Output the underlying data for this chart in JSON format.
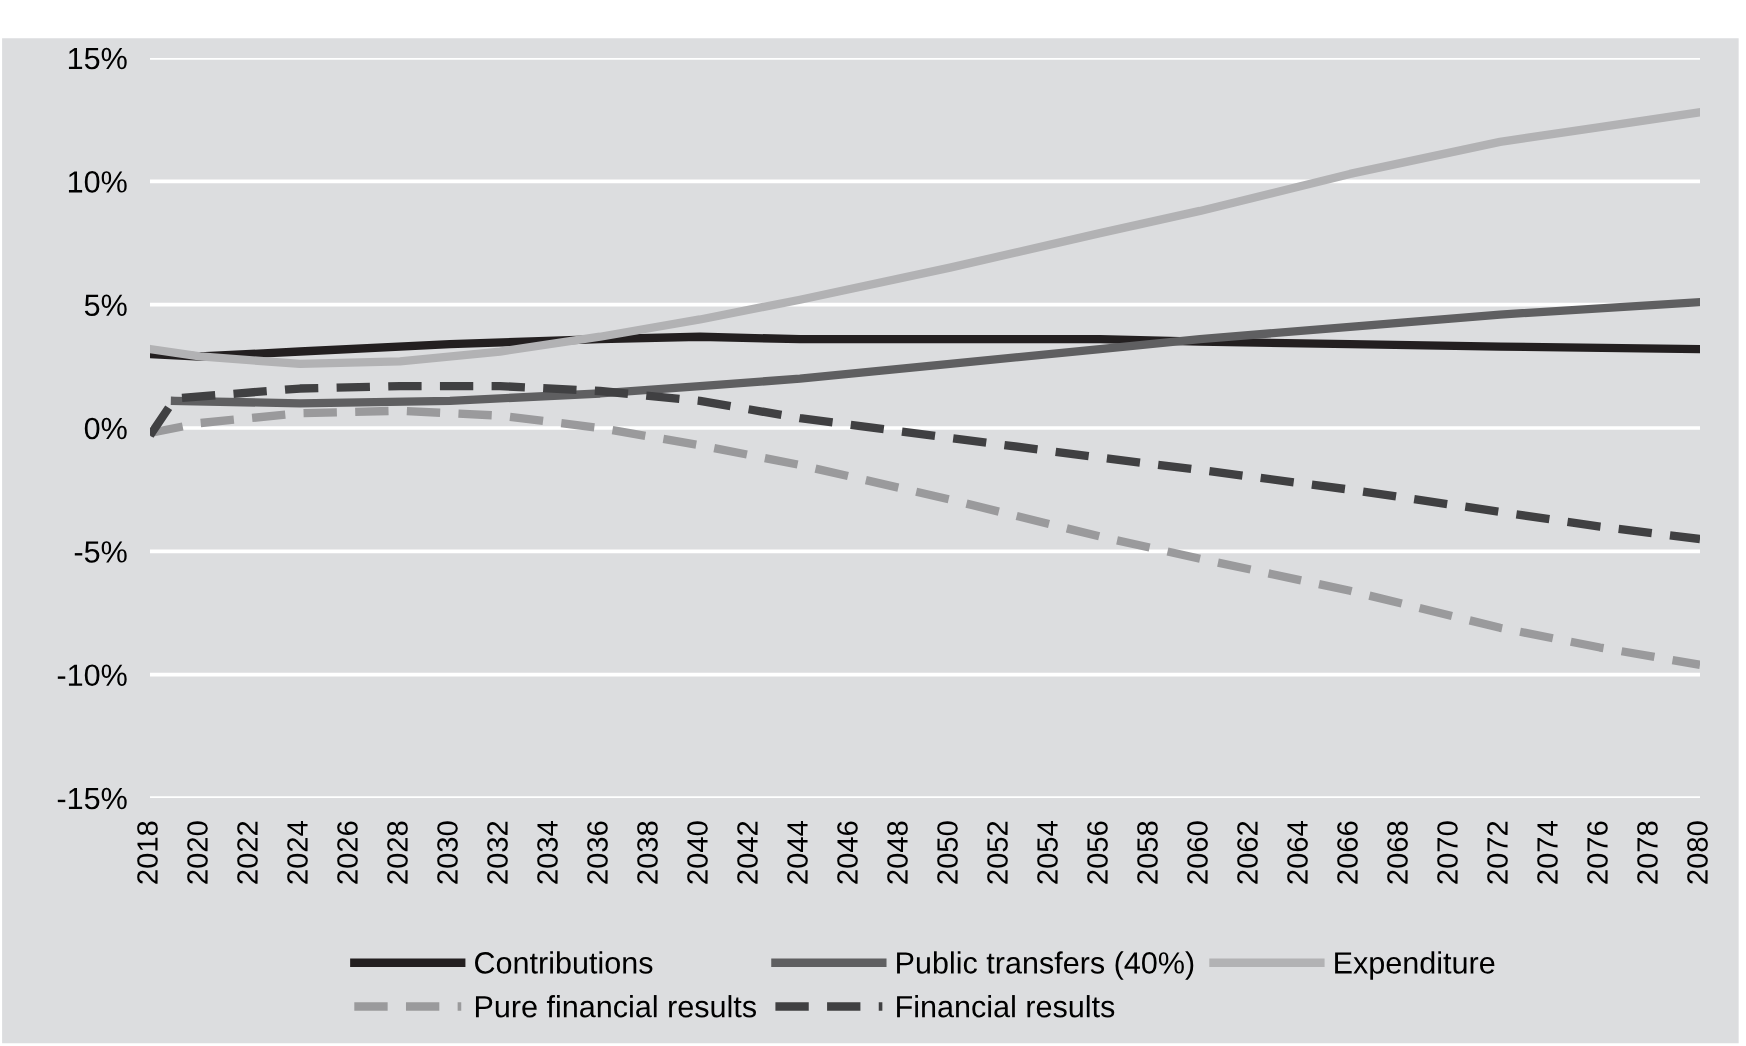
{
  "chart_data": {
    "type": "line",
    "xlim": [
      2018,
      2080
    ],
    "xticks": [
      2018,
      2020,
      2022,
      2024,
      2026,
      2028,
      2030,
      2032,
      2034,
      2036,
      2038,
      2040,
      2042,
      2044,
      2046,
      2048,
      2050,
      2052,
      2054,
      2056,
      2058,
      2060,
      2062,
      2064,
      2066,
      2068,
      2070,
      2072,
      2074,
      2076,
      2078,
      2080
    ],
    "ylim": [
      -15,
      15
    ],
    "yticks": [
      {
        "value": -15,
        "label": "-15%"
      },
      {
        "value": -10,
        "label": "-10%"
      },
      {
        "value": -5,
        "label": "-5%"
      },
      {
        "value": 0,
        "label": "0%"
      },
      {
        "value": 5,
        "label": "5%"
      },
      {
        "value": 10,
        "label": "10%"
      },
      {
        "value": 15,
        "label": "15%"
      }
    ],
    "grid": "y",
    "legend": "bottom",
    "marker": "none",
    "series": [
      {
        "name": "Contributions",
        "color": "#231f20",
        "line_style": "solid",
        "x": [
          2018,
          2020,
          2024,
          2030,
          2036,
          2040,
          2044,
          2050,
          2056,
          2060,
          2066,
          2072,
          2080
        ],
        "values": [
          3.0,
          2.9,
          3.1,
          3.4,
          3.6,
          3.7,
          3.6,
          3.6,
          3.6,
          3.5,
          3.4,
          3.3,
          3.2
        ]
      },
      {
        "name": "Public transfers (40%)",
        "color": "#5f5f61",
        "line_style": "solid",
        "x": [
          2019,
          2024,
          2030,
          2036,
          2040,
          2044,
          2050,
          2056,
          2060,
          2066,
          2072,
          2080
        ],
        "values": [
          1.1,
          1.0,
          1.1,
          1.4,
          1.7,
          2.0,
          2.6,
          3.2,
          3.6,
          4.1,
          4.6,
          5.1
        ]
      },
      {
        "name": "Expenditure",
        "color": "#b2b2b4",
        "line_style": "solid",
        "x": [
          2018,
          2020,
          2024,
          2028,
          2032,
          2036,
          2040,
          2044,
          2050,
          2056,
          2060,
          2066,
          2072,
          2076,
          2080
        ],
        "values": [
          3.2,
          2.9,
          2.6,
          2.7,
          3.1,
          3.7,
          4.4,
          5.2,
          6.5,
          7.9,
          8.8,
          10.3,
          11.6,
          12.2,
          12.8
        ]
      },
      {
        "name": "Pure financial results",
        "color": "#9a9a9c",
        "line_style": "dashed",
        "x": [
          2018,
          2020,
          2024,
          2028,
          2032,
          2036,
          2040,
          2044,
          2050,
          2056,
          2060,
          2066,
          2072,
          2076,
          2080
        ],
        "values": [
          -0.2,
          0.2,
          0.6,
          0.7,
          0.5,
          0.0,
          -0.7,
          -1.5,
          -2.9,
          -4.4,
          -5.3,
          -6.6,
          -8.1,
          -8.9,
          -9.6
        ]
      },
      {
        "name": "Financial results",
        "color": "#404042",
        "line_style": "dashed",
        "x": [
          2018,
          2019,
          2024,
          2028,
          2032,
          2036,
          2040,
          2044,
          2050,
          2056,
          2060,
          2066,
          2072,
          2076,
          2080
        ],
        "values": [
          -0.3,
          1.2,
          1.6,
          1.7,
          1.7,
          1.5,
          1.1,
          0.4,
          -0.4,
          -1.2,
          -1.7,
          -2.5,
          -3.4,
          -4.0,
          -4.5
        ]
      }
    ]
  }
}
